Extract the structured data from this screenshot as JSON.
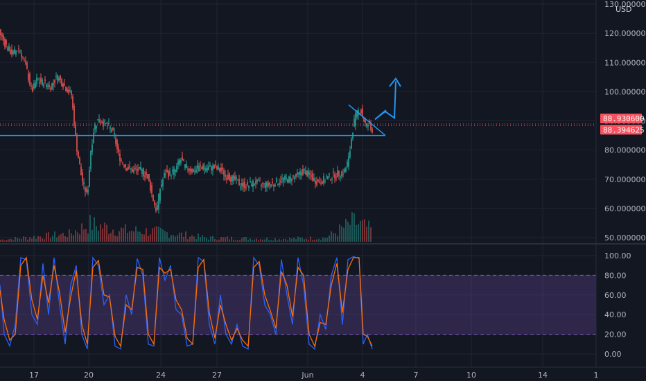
{
  "colors": {
    "background": "#131722",
    "grid": "#1f2432",
    "up": "#26a69a",
    "down": "#ef5350",
    "drawing": "#2196f3",
    "stoch_k": "#2962ff",
    "stoch_d": "#ff6d00",
    "stoch_band": "#7e57c2",
    "price_tag": "#f7525f"
  },
  "chart_data": [
    {
      "type": "candlestick",
      "currency_label": "USD",
      "ylim": [
        50,
        130
      ],
      "y_ticks": [
        "130.000000",
        "120.000000",
        "110.000000",
        "100.000000",
        "90.000000",
        "80.000000",
        "70.000000",
        "60.000000",
        "50.000000"
      ],
      "y_tick_values": [
        130,
        120,
        110,
        100,
        90,
        80,
        70,
        60,
        50
      ],
      "x_ticks": [
        "17",
        "20",
        "24",
        "27",
        "Jun",
        "4",
        "7",
        "10",
        "14",
        "1"
      ],
      "price_tags": [
        "88.930600",
        "88.394625"
      ],
      "price_tag_values": [
        88.9306,
        88.394625
      ],
      "horizontal_level": 85.0,
      "close_path": [
        [
          0,
          121
        ],
        [
          10,
          116
        ],
        [
          20,
          113
        ],
        [
          30,
          115
        ],
        [
          40,
          108
        ],
        [
          48,
          100
        ],
        [
          55,
          104
        ],
        [
          65,
          103
        ],
        [
          75,
          102
        ],
        [
          85,
          105
        ],
        [
          95,
          102
        ],
        [
          105,
          99
        ],
        [
          112,
          82
        ],
        [
          120,
          70
        ],
        [
          128,
          64
        ],
        [
          133,
          80
        ],
        [
          138,
          88
        ],
        [
          145,
          91
        ],
        [
          152,
          89
        ],
        [
          160,
          88
        ],
        [
          167,
          85
        ],
        [
          172,
          79
        ],
        [
          178,
          76
        ],
        [
          185,
          74
        ],
        [
          195,
          73
        ],
        [
          205,
          73
        ],
        [
          215,
          71
        ],
        [
          222,
          64
        ],
        [
          228,
          59
        ],
        [
          233,
          67
        ],
        [
          240,
          72
        ],
        [
          248,
          72
        ],
        [
          255,
          73
        ],
        [
          262,
          77
        ],
        [
          270,
          74
        ],
        [
          280,
          73
        ],
        [
          290,
          74
        ],
        [
          300,
          74
        ],
        [
          310,
          74
        ],
        [
          320,
          73
        ],
        [
          330,
          71
        ],
        [
          340,
          70
        ],
        [
          350,
          68
        ],
        [
          360,
          68
        ],
        [
          370,
          69
        ],
        [
          380,
          68
        ],
        [
          390,
          68
        ],
        [
          400,
          69
        ],
        [
          410,
          70
        ],
        [
          420,
          70
        ],
        [
          430,
          71
        ],
        [
          440,
          73
        ],
        [
          450,
          71
        ],
        [
          460,
          69
        ],
        [
          470,
          70
        ],
        [
          480,
          71
        ],
        [
          490,
          72
        ],
        [
          500,
          73
        ],
        [
          506,
          78
        ],
        [
          510,
          86
        ],
        [
          514,
          91
        ],
        [
          518,
          93
        ],
        [
          522,
          94
        ],
        [
          526,
          91
        ],
        [
          530,
          88
        ],
        [
          534,
          89
        ],
        [
          537,
          87
        ]
      ],
      "volume_profile": [
        [
          0,
          0.1
        ],
        [
          50,
          0.25
        ],
        [
          100,
          0.4
        ],
        [
          130,
          0.9
        ],
        [
          170,
          0.6
        ],
        [
          230,
          0.5
        ],
        [
          300,
          0.2
        ],
        [
          400,
          0.15
        ],
        [
          470,
          0.2
        ],
        [
          510,
          1.0
        ],
        [
          537,
          0.6
        ]
      ]
    },
    {
      "type": "line",
      "indicator": "stochastic",
      "ylim": [
        0,
        100
      ],
      "y_ticks": [
        "100.00",
        "80.00",
        "60.00",
        "40.00",
        "20.00",
        "0.00"
      ],
      "y_tick_values": [
        100,
        80,
        60,
        40,
        20,
        0
      ],
      "band": [
        20,
        80
      ],
      "k_path": [
        [
          0,
          70
        ],
        [
          6,
          20
        ],
        [
          14,
          8
        ],
        [
          22,
          30
        ],
        [
          30,
          98
        ],
        [
          38,
          96
        ],
        [
          46,
          40
        ],
        [
          54,
          30
        ],
        [
          62,
          92
        ],
        [
          70,
          40
        ],
        [
          78,
          98
        ],
        [
          86,
          50
        ],
        [
          94,
          10
        ],
        [
          102,
          70
        ],
        [
          110,
          90
        ],
        [
          118,
          20
        ],
        [
          126,
          5
        ],
        [
          134,
          98
        ],
        [
          142,
          90
        ],
        [
          150,
          50
        ],
        [
          158,
          60
        ],
        [
          166,
          8
        ],
        [
          174,
          5
        ],
        [
          182,
          60
        ],
        [
          190,
          40
        ],
        [
          198,
          97
        ],
        [
          206,
          80
        ],
        [
          214,
          10
        ],
        [
          222,
          8
        ],
        [
          230,
          98
        ],
        [
          238,
          75
        ],
        [
          246,
          90
        ],
        [
          254,
          45
        ],
        [
          262,
          40
        ],
        [
          270,
          8
        ],
        [
          278,
          10
        ],
        [
          286,
          98
        ],
        [
          294,
          94
        ],
        [
          302,
          30
        ],
        [
          310,
          10
        ],
        [
          318,
          60
        ],
        [
          326,
          20
        ],
        [
          334,
          10
        ],
        [
          342,
          30
        ],
        [
          350,
          8
        ],
        [
          358,
          5
        ],
        [
          366,
          98
        ],
        [
          374,
          90
        ],
        [
          382,
          50
        ],
        [
          390,
          40
        ],
        [
          398,
          20
        ],
        [
          406,
          96
        ],
        [
          414,
          60
        ],
        [
          422,
          30
        ],
        [
          430,
          98
        ],
        [
          438,
          70
        ],
        [
          446,
          10
        ],
        [
          454,
          5
        ],
        [
          462,
          40
        ],
        [
          470,
          25
        ],
        [
          478,
          80
        ],
        [
          486,
          98
        ],
        [
          494,
          30
        ],
        [
          502,
          96
        ],
        [
          510,
          99
        ],
        [
          518,
          97
        ],
        [
          524,
          10
        ],
        [
          530,
          20
        ],
        [
          537,
          5
        ]
      ],
      "d_path": [
        [
          0,
          65
        ],
        [
          6,
          35
        ],
        [
          14,
          14
        ],
        [
          22,
          20
        ],
        [
          30,
          90
        ],
        [
          38,
          98
        ],
        [
          46,
          55
        ],
        [
          54,
          35
        ],
        [
          62,
          80
        ],
        [
          70,
          52
        ],
        [
          78,
          90
        ],
        [
          86,
          62
        ],
        [
          94,
          22
        ],
        [
          102,
          58
        ],
        [
          110,
          85
        ],
        [
          118,
          30
        ],
        [
          126,
          10
        ],
        [
          134,
          88
        ],
        [
          142,
          95
        ],
        [
          150,
          60
        ],
        [
          158,
          58
        ],
        [
          166,
          18
        ],
        [
          174,
          8
        ],
        [
          182,
          50
        ],
        [
          190,
          45
        ],
        [
          198,
          88
        ],
        [
          206,
          86
        ],
        [
          214,
          20
        ],
        [
          222,
          10
        ],
        [
          230,
          88
        ],
        [
          238,
          82
        ],
        [
          246,
          86
        ],
        [
          254,
          55
        ],
        [
          262,
          45
        ],
        [
          270,
          16
        ],
        [
          278,
          10
        ],
        [
          286,
          88
        ],
        [
          294,
          96
        ],
        [
          302,
          42
        ],
        [
          310,
          16
        ],
        [
          318,
          50
        ],
        [
          326,
          30
        ],
        [
          334,
          14
        ],
        [
          342,
          26
        ],
        [
          350,
          14
        ],
        [
          358,
          8
        ],
        [
          366,
          88
        ],
        [
          374,
          94
        ],
        [
          382,
          60
        ],
        [
          390,
          44
        ],
        [
          398,
          26
        ],
        [
          406,
          84
        ],
        [
          414,
          70
        ],
        [
          422,
          38
        ],
        [
          430,
          88
        ],
        [
          438,
          80
        ],
        [
          446,
          20
        ],
        [
          454,
          8
        ],
        [
          462,
          32
        ],
        [
          470,
          30
        ],
        [
          478,
          70
        ],
        [
          486,
          92
        ],
        [
          494,
          42
        ],
        [
          502,
          86
        ],
        [
          510,
          98
        ],
        [
          518,
          98
        ],
        [
          524,
          20
        ],
        [
          530,
          18
        ],
        [
          537,
          8
        ]
      ]
    }
  ]
}
